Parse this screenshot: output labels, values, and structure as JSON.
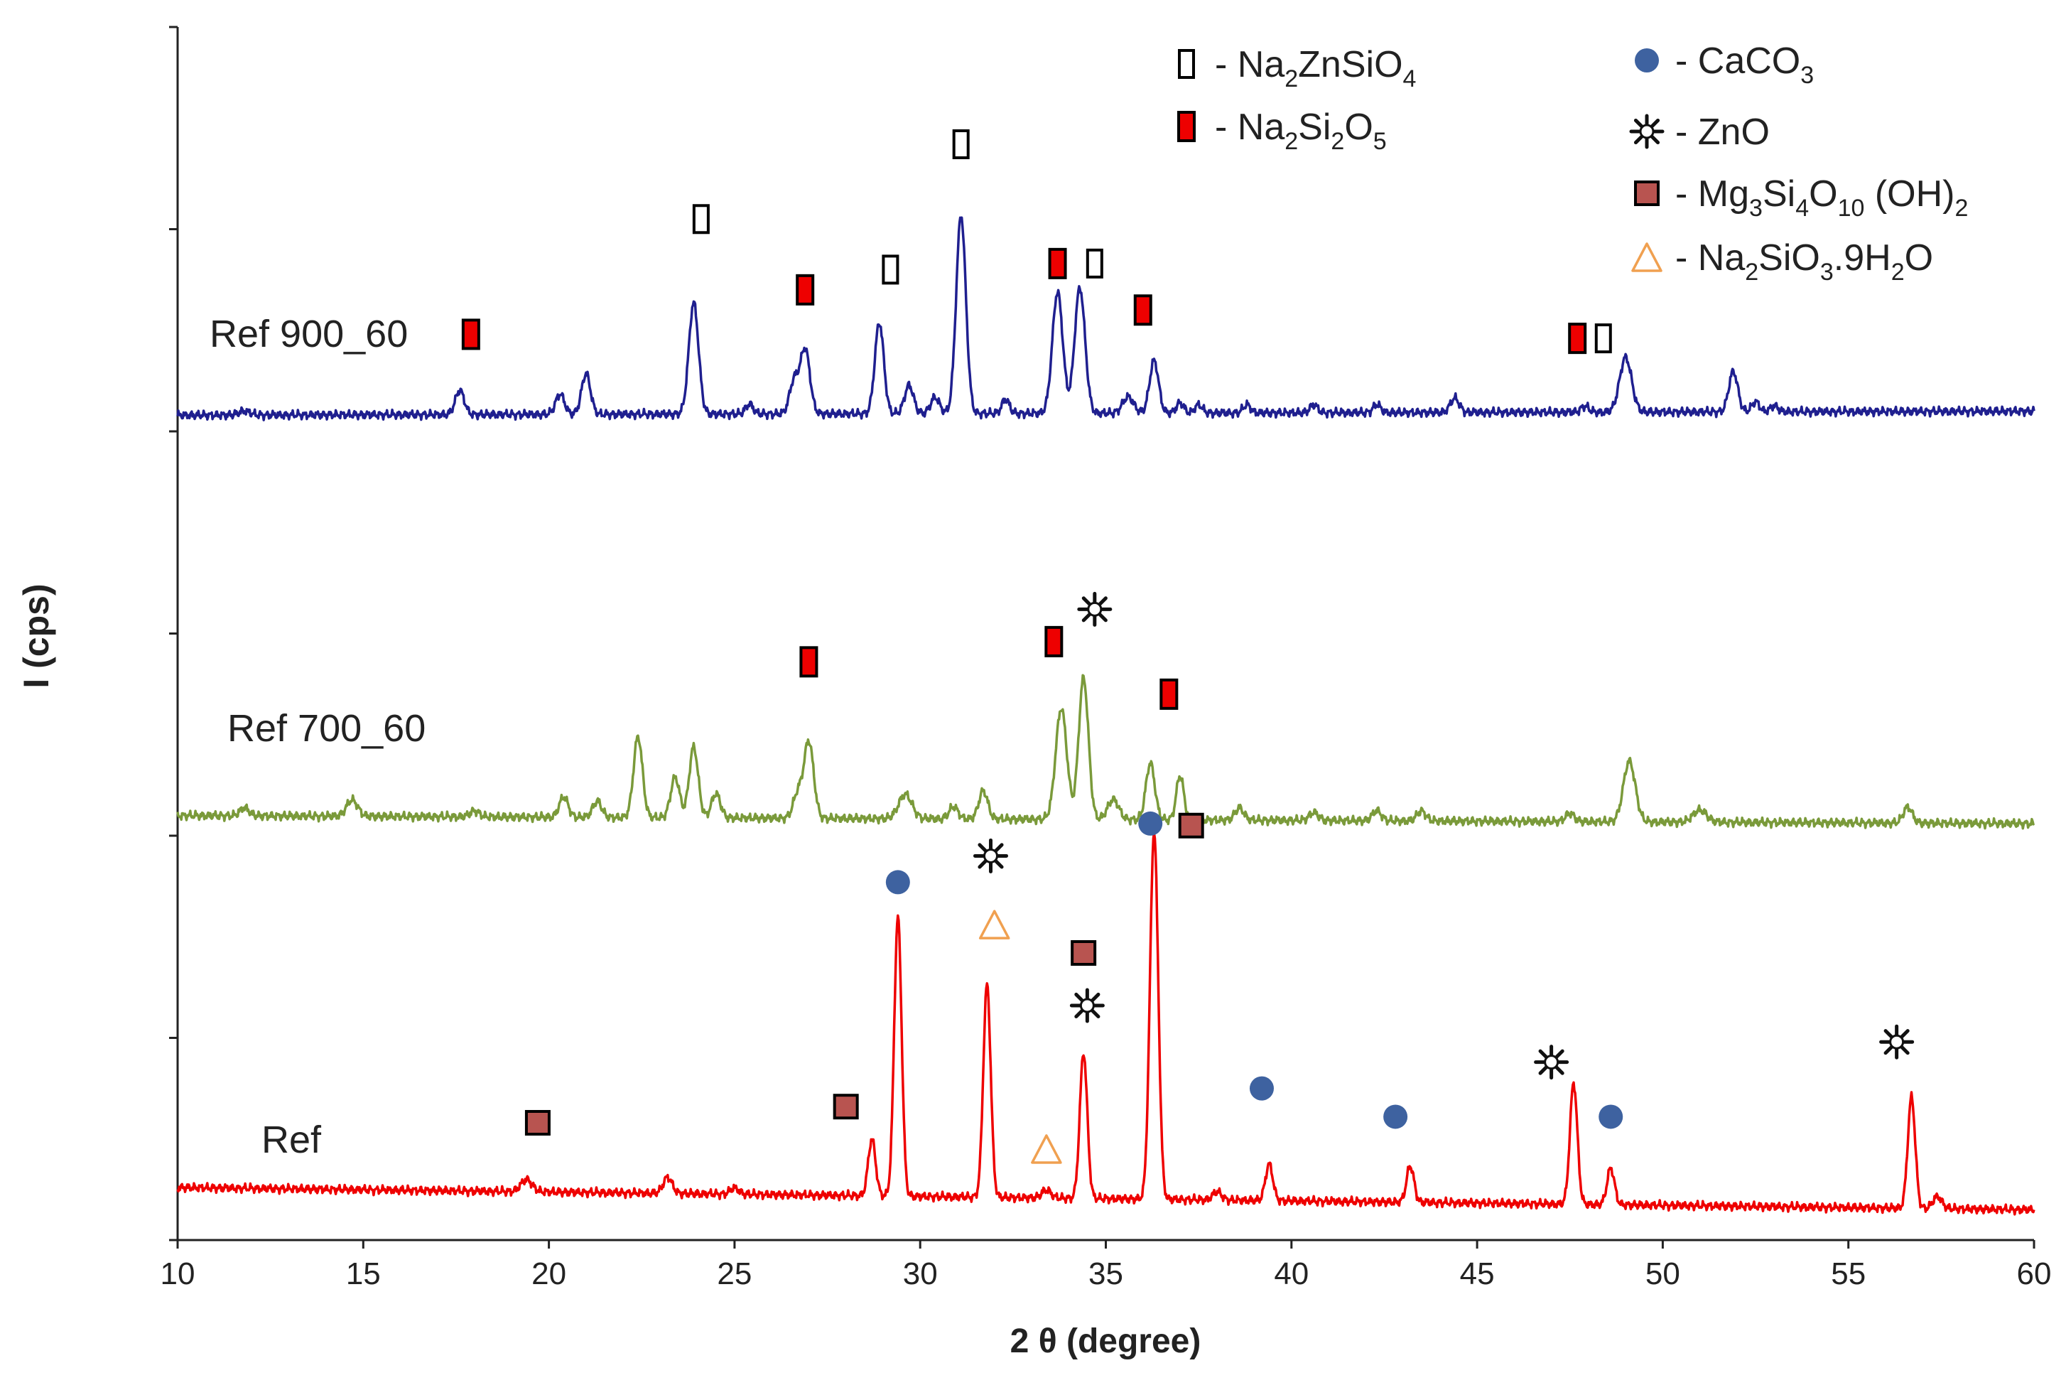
{
  "chart_data": {
    "type": "line",
    "title": "",
    "xlabel": "2 θ (degree)",
    "ylabel": "I (cps)",
    "xlim": [
      10,
      60
    ],
    "xticks": [
      10,
      15,
      20,
      25,
      30,
      35,
      40,
      45,
      50,
      55,
      60
    ],
    "ylim": [
      0,
      6
    ],
    "yticks": [
      0,
      1,
      2,
      3,
      4,
      5,
      6
    ],
    "yticks_labeled": false,
    "grid": false,
    "legend_position": "top-right",
    "series": [
      {
        "name": "Ref 900_60",
        "color": "#1f1f8f",
        "baseline": [
          [
            10,
            4.08
          ],
          [
            60,
            4.1
          ]
        ],
        "peaks": [
          [
            11.8,
            0.02,
            0.15
          ],
          [
            17.6,
            0.12,
            0.12
          ],
          [
            20.3,
            0.1,
            0.12
          ],
          [
            21.0,
            0.2,
            0.12
          ],
          [
            23.9,
            0.55,
            0.13
          ],
          [
            25.4,
            0.05,
            0.1
          ],
          [
            26.6,
            0.16,
            0.12
          ],
          [
            26.9,
            0.32,
            0.13
          ],
          [
            28.9,
            0.45,
            0.12
          ],
          [
            29.7,
            0.14,
            0.12
          ],
          [
            30.4,
            0.08,
            0.12
          ],
          [
            31.1,
            0.98,
            0.13
          ],
          [
            32.3,
            0.07,
            0.1
          ],
          [
            33.7,
            0.6,
            0.14
          ],
          [
            34.3,
            0.62,
            0.14
          ],
          [
            35.6,
            0.08,
            0.15
          ],
          [
            36.3,
            0.26,
            0.12
          ],
          [
            37.0,
            0.05,
            0.1
          ],
          [
            37.5,
            0.04,
            0.1
          ],
          [
            38.8,
            0.04,
            0.1
          ],
          [
            40.6,
            0.04,
            0.1
          ],
          [
            42.3,
            0.04,
            0.1
          ],
          [
            44.4,
            0.07,
            0.12
          ],
          [
            47.9,
            0.03,
            0.1
          ],
          [
            49.0,
            0.27,
            0.16
          ],
          [
            51.9,
            0.2,
            0.12
          ],
          [
            52.5,
            0.05,
            0.1
          ],
          [
            53.0,
            0.03,
            0.1
          ]
        ]
      },
      {
        "name": "Ref 700_60",
        "color": "#7a9a3a",
        "baseline": [
          [
            10,
            2.1
          ],
          [
            60,
            2.06
          ]
        ],
        "peaks": [
          [
            11.8,
            0.04,
            0.12
          ],
          [
            14.7,
            0.08,
            0.15
          ],
          [
            18.0,
            0.03,
            0.12
          ],
          [
            20.4,
            0.1,
            0.12
          ],
          [
            21.3,
            0.08,
            0.12
          ],
          [
            22.4,
            0.4,
            0.12
          ],
          [
            23.4,
            0.2,
            0.12
          ],
          [
            23.9,
            0.35,
            0.12
          ],
          [
            24.5,
            0.12,
            0.12
          ],
          [
            26.7,
            0.12,
            0.12
          ],
          [
            27.0,
            0.38,
            0.13
          ],
          [
            29.6,
            0.12,
            0.18
          ],
          [
            30.9,
            0.06,
            0.12
          ],
          [
            31.7,
            0.14,
            0.12
          ],
          [
            33.8,
            0.55,
            0.15
          ],
          [
            34.4,
            0.7,
            0.13
          ],
          [
            35.2,
            0.1,
            0.15
          ],
          [
            36.2,
            0.28,
            0.12
          ],
          [
            37.0,
            0.22,
            0.1
          ],
          [
            38.6,
            0.06,
            0.12
          ],
          [
            40.6,
            0.04,
            0.12
          ],
          [
            42.3,
            0.05,
            0.12
          ],
          [
            43.5,
            0.05,
            0.12
          ],
          [
            47.5,
            0.04,
            0.12
          ],
          [
            49.1,
            0.3,
            0.16
          ],
          [
            51.0,
            0.06,
            0.18
          ],
          [
            56.6,
            0.08,
            0.12
          ]
        ]
      },
      {
        "name": "Ref",
        "color": "#ee0000",
        "baseline": [
          [
            10,
            0.26
          ],
          [
            60,
            0.15
          ]
        ],
        "peaks": [
          [
            19.4,
            0.06,
            0.15
          ],
          [
            23.2,
            0.08,
            0.12
          ],
          [
            25.0,
            0.03,
            0.12
          ],
          [
            28.7,
            0.28,
            0.1
          ],
          [
            29.4,
            1.38,
            0.1
          ],
          [
            31.8,
            1.05,
            0.1
          ],
          [
            33.4,
            0.04,
            0.12
          ],
          [
            34.4,
            0.72,
            0.1
          ],
          [
            36.3,
            1.82,
            0.11
          ],
          [
            38.0,
            0.04,
            0.12
          ],
          [
            39.4,
            0.18,
            0.1
          ],
          [
            43.2,
            0.18,
            0.1
          ],
          [
            47.6,
            0.6,
            0.1
          ],
          [
            48.6,
            0.18,
            0.1
          ],
          [
            56.7,
            0.55,
            0.1
          ],
          [
            57.4,
            0.06,
            0.12
          ]
        ]
      }
    ],
    "series_labels": [
      {
        "text": "Ref 900_60",
        "series": "Ref 900_60"
      },
      {
        "text": "Ref 700_60",
        "series": "Ref 700_60"
      },
      {
        "text": "Ref",
        "series": "Ref"
      }
    ],
    "phase_markers": [
      {
        "phase": "Na2ZnSiO4",
        "x": 24.1,
        "y": 5.05
      },
      {
        "phase": "Na2ZnSiO4",
        "x": 29.2,
        "y": 4.8
      },
      {
        "phase": "Na2ZnSiO4",
        "x": 31.1,
        "y": 5.42
      },
      {
        "phase": "Na2ZnSiO4",
        "x": 34.7,
        "y": 4.83
      },
      {
        "phase": "Na2ZnSiO4",
        "x": 48.4,
        "y": 4.46
      },
      {
        "phase": "Na2Si2O5",
        "x": 17.9,
        "y": 4.48
      },
      {
        "phase": "Na2Si2O5",
        "x": 26.9,
        "y": 4.7
      },
      {
        "phase": "Na2Si2O5",
        "x": 33.7,
        "y": 4.83
      },
      {
        "phase": "Na2Si2O5",
        "x": 36.0,
        "y": 4.6
      },
      {
        "phase": "Na2Si2O5",
        "x": 47.7,
        "y": 4.46
      },
      {
        "phase": "Na2Si2O5",
        "x": 27.0,
        "y": 2.86
      },
      {
        "phase": "Na2Si2O5",
        "x": 33.6,
        "y": 2.96
      },
      {
        "phase": "Na2Si2O5",
        "x": 36.7,
        "y": 2.7
      },
      {
        "phase": "ZnO",
        "x": 34.7,
        "y": 3.12
      },
      {
        "phase": "ZnO",
        "x": 31.9,
        "y": 1.9
      },
      {
        "phase": "ZnO",
        "x": 34.5,
        "y": 1.16
      },
      {
        "phase": "ZnO",
        "x": 47.0,
        "y": 0.88
      },
      {
        "phase": "ZnO",
        "x": 56.3,
        "y": 0.98
      },
      {
        "phase": "CaCO3",
        "x": 29.4,
        "y": 1.77
      },
      {
        "phase": "CaCO3",
        "x": 36.2,
        "y": 2.06
      },
      {
        "phase": "CaCO3",
        "x": 39.2,
        "y": 0.75
      },
      {
        "phase": "CaCO3",
        "x": 42.8,
        "y": 0.61
      },
      {
        "phase": "CaCO3",
        "x": 48.6,
        "y": 0.61
      },
      {
        "phase": "Mg3Si4O10(OH)2",
        "x": 19.7,
        "y": 0.58
      },
      {
        "phase": "Mg3Si4O10(OH)2",
        "x": 28.0,
        "y": 0.66
      },
      {
        "phase": "Mg3Si4O10(OH)2",
        "x": 34.4,
        "y": 1.42
      },
      {
        "phase": "Mg3Si4O10(OH)2",
        "x": 37.3,
        "y": 2.05
      },
      {
        "phase": "Na2SiO3.9H2O",
        "x": 32.0,
        "y": 1.56
      },
      {
        "phase": "Na2SiO3.9H2O",
        "x": 33.4,
        "y": 0.45
      }
    ],
    "legend": [
      {
        "phase": "Na2ZnSiO4",
        "symbol": "open-rect",
        "color": "#000000",
        "prefix": "-  ",
        "base": "Na",
        "parts": [
          [
            "2",
            "sub"
          ],
          [
            "ZnSiO",
            "n"
          ],
          [
            "4",
            "sub"
          ]
        ]
      },
      {
        "phase": "Na2Si2O5",
        "symbol": "red-rect",
        "color": "#ee0000",
        "prefix": "- ",
        "base": "Na",
        "parts": [
          [
            "2",
            "sub"
          ],
          [
            "Si",
            "n"
          ],
          [
            "2",
            "sub"
          ],
          [
            "O",
            "n"
          ],
          [
            "5",
            "sub"
          ]
        ]
      },
      {
        "phase": "CaCO3",
        "symbol": "circle",
        "color": "#3e62a0",
        "prefix": "- ",
        "base": "CaCO",
        "parts": [
          [
            "3",
            "sub"
          ]
        ]
      },
      {
        "phase": "ZnO",
        "symbol": "star",
        "color": "#111111",
        "prefix": "- ",
        "base": "ZnO",
        "parts": []
      },
      {
        "phase": "Mg3Si4O10(OH)2",
        "symbol": "square",
        "color": "#b85450",
        "prefix": "-  ",
        "base": "Mg",
        "parts": [
          [
            "3",
            "sub"
          ],
          [
            "Si",
            "n"
          ],
          [
            "4",
            "sub"
          ],
          [
            "O",
            "n"
          ],
          [
            "10",
            "sub"
          ],
          [
            " (OH)",
            "n"
          ],
          [
            "2",
            "sub"
          ]
        ]
      },
      {
        "phase": "Na2SiO3.9H2O",
        "symbol": "triangle",
        "color": "#f0a050",
        "prefix": "-  ",
        "base": "Na",
        "parts": [
          [
            "2",
            "sub"
          ],
          [
            "SiO",
            "n"
          ],
          [
            "3",
            "sub"
          ],
          [
            ".9H",
            "n"
          ],
          [
            "2",
            "sub"
          ],
          [
            "O",
            "n"
          ]
        ]
      }
    ]
  }
}
